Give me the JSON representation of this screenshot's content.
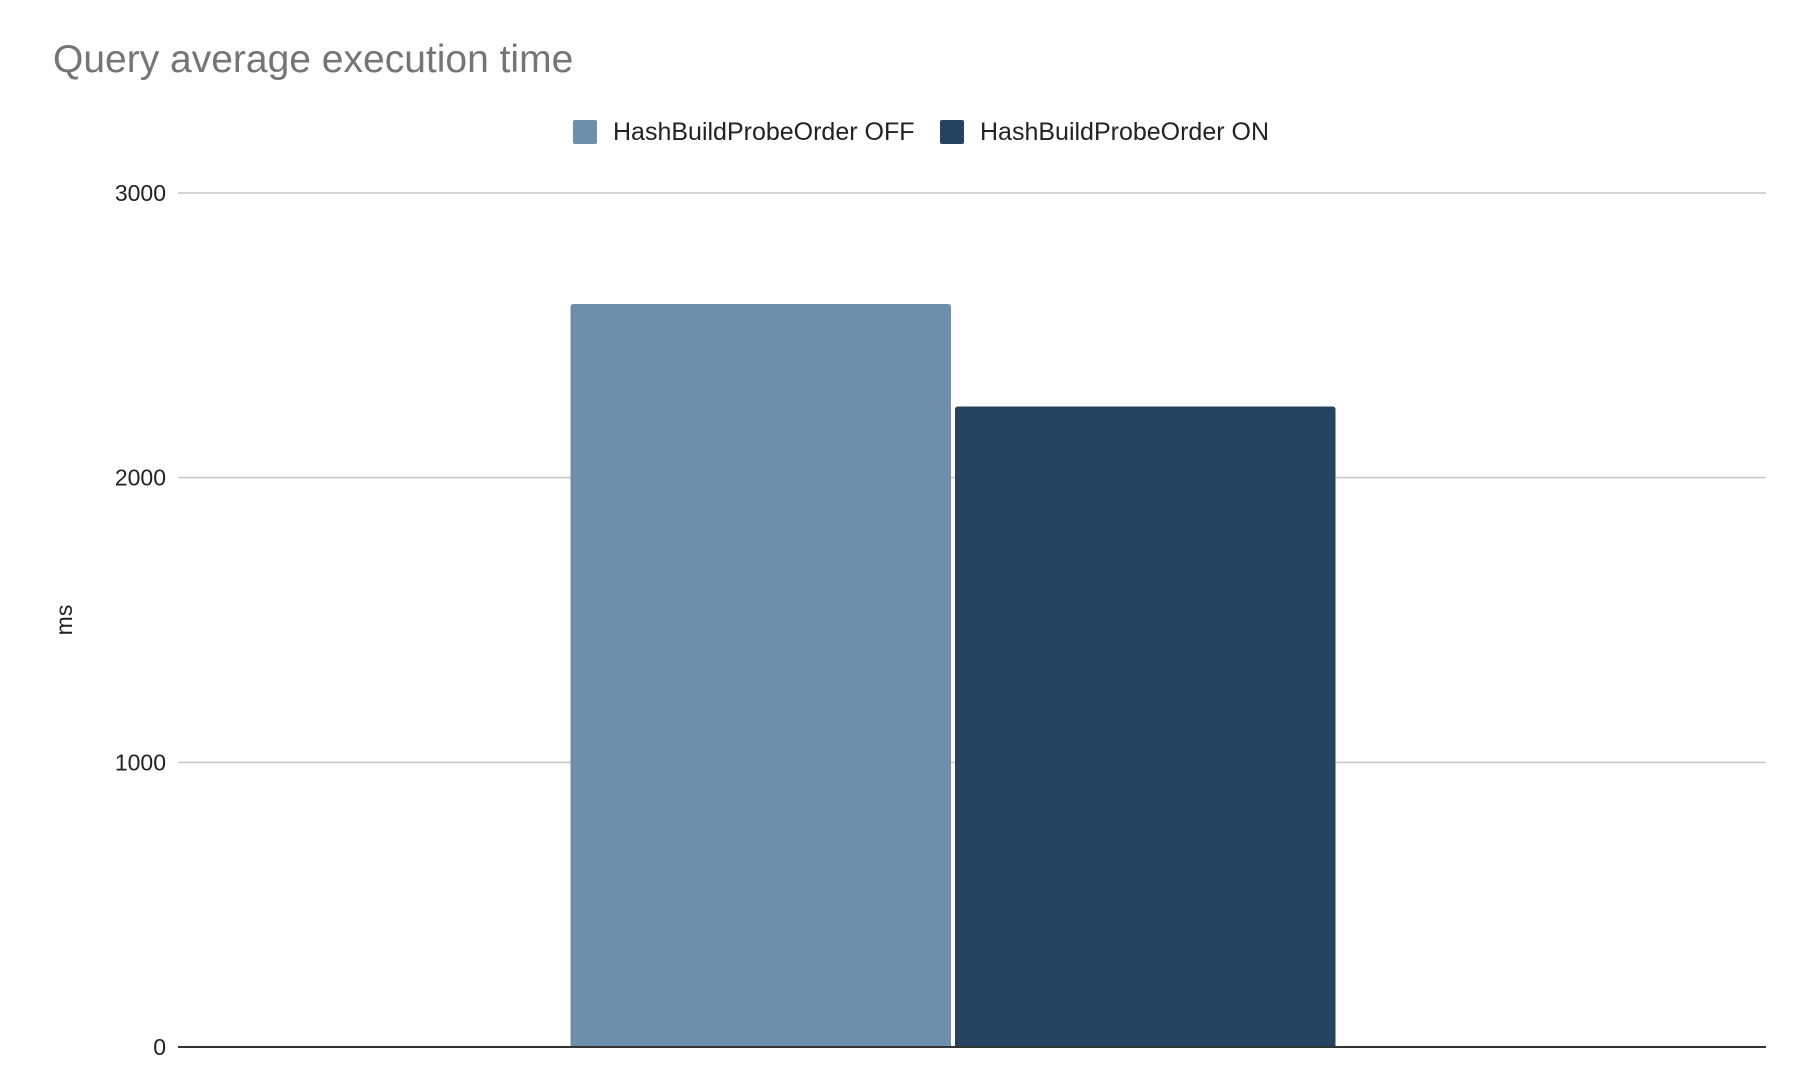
{
  "chart_data": {
    "type": "bar",
    "title": "Query average execution time",
    "categories": [
      ""
    ],
    "series": [
      {
        "name": "HashBuildProbeOrder OFF",
        "values": [
          2610
        ],
        "color": "#6d8fab"
      },
      {
        "name": "HashBuildProbeOrder ON",
        "values": [
          2250
        ],
        "color": "#25435f"
      }
    ],
    "xlabel": "",
    "ylabel": "ms",
    "ylim": [
      0,
      3000
    ],
    "yticks": [
      "0",
      "1000",
      "2000",
      "3000"
    ],
    "grid": true,
    "legend_position": "top-center"
  }
}
